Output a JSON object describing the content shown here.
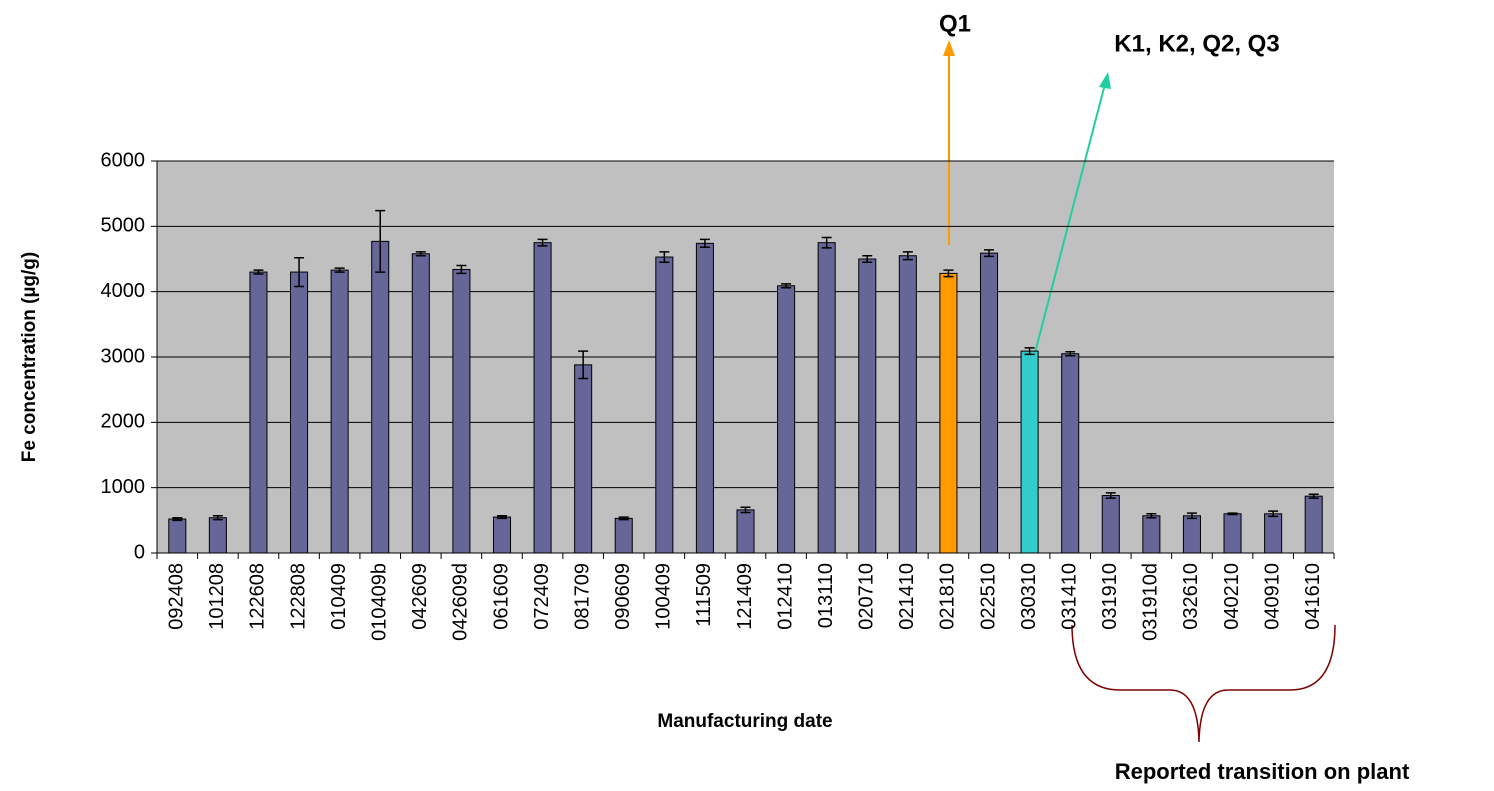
{
  "chart_data": {
    "type": "bar",
    "xlabel": "Manufacturing date",
    "ylabel": "Fe concentration (µg/g)",
    "categories": [
      "092408",
      "101208",
      "122608",
      "122808",
      "010409",
      "010409b",
      "042609",
      "042609d",
      "061609",
      "072409",
      "081709",
      "090609",
      "100409",
      "111509",
      "121409",
      "012410",
      "013110",
      "020710",
      "021410",
      "021810",
      "022510",
      "030310",
      "031410",
      "031910",
      "031910d",
      "032610",
      "040210",
      "040910",
      "041610"
    ],
    "values": [
      520,
      540,
      4300,
      4300,
      4330,
      4770,
      4580,
      4340,
      550,
      4750,
      2880,
      530,
      4530,
      4740,
      660,
      4090,
      4750,
      4500,
      4550,
      4280,
      4590,
      3090,
      3050,
      880,
      570,
      570,
      600,
      600,
      870
    ],
    "errors": [
      20,
      30,
      30,
      220,
      30,
      470,
      30,
      60,
      20,
      50,
      210,
      20,
      80,
      60,
      40,
      30,
      80,
      50,
      60,
      50,
      50,
      50,
      30,
      40,
      30,
      40,
      10,
      40,
      30
    ],
    "colors": [
      "#666699",
      "#666699",
      "#666699",
      "#666699",
      "#666699",
      "#666699",
      "#666699",
      "#666699",
      "#666699",
      "#666699",
      "#666699",
      "#666699",
      "#666699",
      "#666699",
      "#666699",
      "#666699",
      "#666699",
      "#666699",
      "#666699",
      "#ff9900",
      "#666699",
      "#33cccc",
      "#666699",
      "#666699",
      "#666699",
      "#666699",
      "#666699",
      "#666699",
      "#666699"
    ],
    "ylim": [
      0,
      6000
    ],
    "yticks": [
      0,
      1000,
      2000,
      3000,
      4000,
      5000,
      6000
    ],
    "grid": true,
    "annotations": [
      "Q1",
      "K1, K2, Q2, Q3",
      "Reported transition on plant"
    ]
  }
}
